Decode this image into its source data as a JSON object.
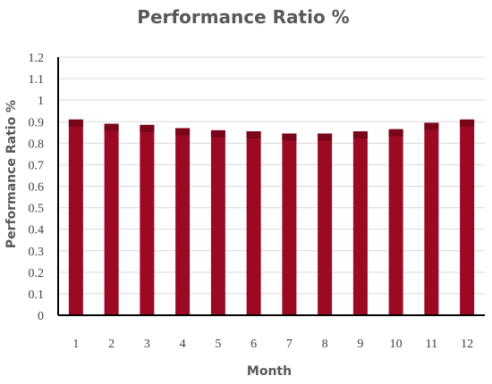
{
  "chart_data": {
    "type": "bar",
    "title": "Performance Ratio %",
    "xlabel": "Month",
    "ylabel": "Performance Ratio %",
    "categories": [
      "1",
      "2",
      "3",
      "4",
      "5",
      "6",
      "7",
      "8",
      "9",
      "10",
      "11",
      "12"
    ],
    "values": [
      0.91,
      0.89,
      0.885,
      0.87,
      0.86,
      0.855,
      0.845,
      0.845,
      0.855,
      0.865,
      0.895,
      0.91
    ],
    "ylim": [
      0,
      1.2
    ],
    "yticks": [
      "0",
      "0.1",
      "0.2",
      "0.3",
      "0.4",
      "0.5",
      "0.6",
      "0.7",
      "0.8",
      "0.9",
      "1",
      "1.1",
      "1.2"
    ],
    "grid": true,
    "legend": "none",
    "bar_color": "#9b0a22",
    "bar_top_color": "#7a0719"
  }
}
